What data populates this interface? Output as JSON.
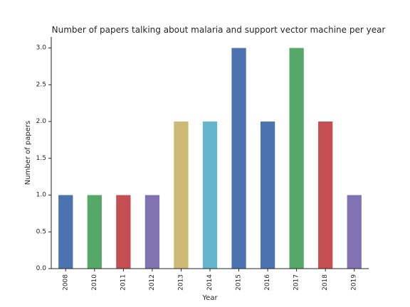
{
  "chart_data": {
    "type": "bar",
    "title": "Number of papers talking about malaria and support vector machine per year",
    "xlabel": "Year",
    "ylabel": "Number of papers",
    "categories": [
      "2008",
      "2010",
      "2011",
      "2012",
      "2013",
      "2014",
      "2015",
      "2016",
      "2017",
      "2018",
      "2019"
    ],
    "values": [
      1,
      1,
      1,
      1,
      2,
      2,
      3,
      2,
      3,
      2,
      1
    ],
    "ylim": [
      0,
      3.15
    ],
    "yticks": [
      "0.0",
      "0.5",
      "1.0",
      "1.5",
      "2.0",
      "2.5",
      "3.0"
    ],
    "colors": [
      "#4c72b0",
      "#55a868",
      "#c44e52",
      "#8172b2",
      "#ccb974",
      "#64b5cd",
      "#4c72b0",
      "#4c72b0",
      "#55a868",
      "#c44e52",
      "#8172b2"
    ],
    "grid": false,
    "legend": "none"
  }
}
